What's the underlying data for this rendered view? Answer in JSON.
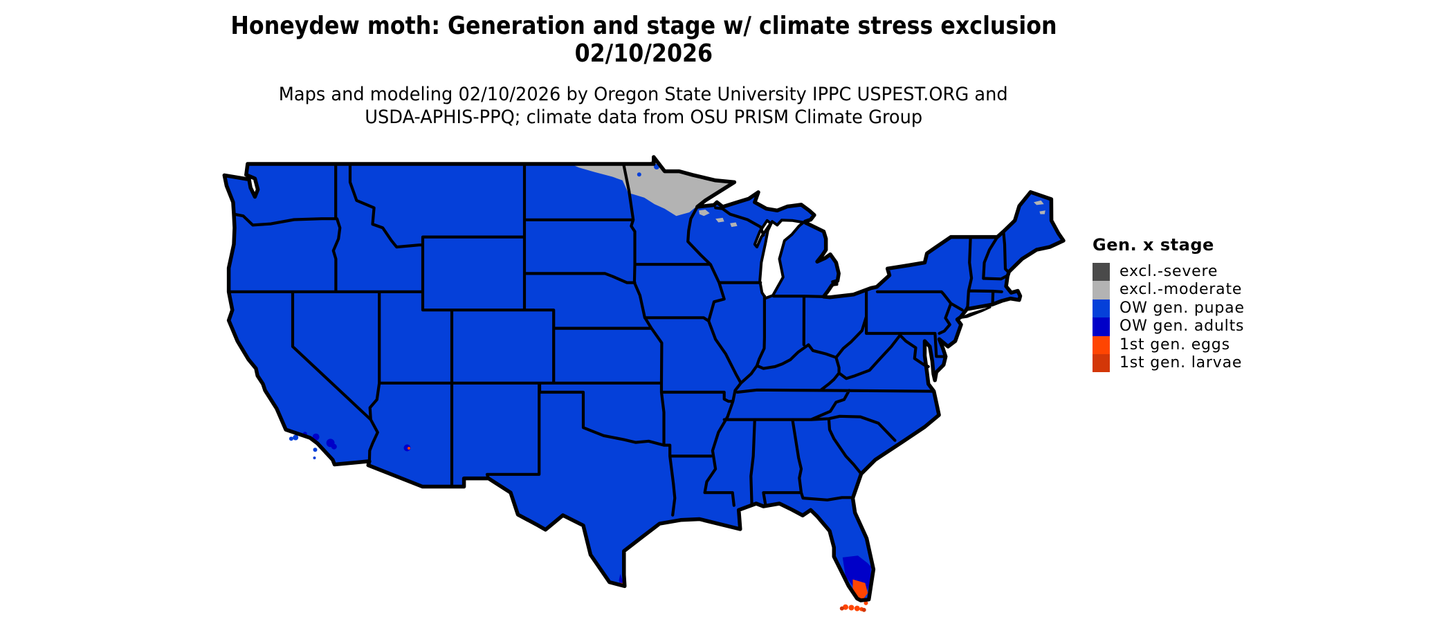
{
  "header": {
    "title_line1": "Honeydew moth: Generation and stage w/ climate stress exclusion",
    "title_line2": "02/10/2026",
    "subtitle_line1": "Maps and modeling 02/10/2026 by Oregon State University IPPC USPEST.ORG and",
    "subtitle_line2": "USDA-APHIS-PPQ; climate data from OSU PRISM Climate Group"
  },
  "legend": {
    "title": "Gen. x stage",
    "items": [
      {
        "key": "excl_severe",
        "label": "excl.-severe",
        "color": "#4a4a4a"
      },
      {
        "key": "excl_moderate",
        "label": "excl.-moderate",
        "color": "#b3b3b3"
      },
      {
        "key": "ow_pupae",
        "label": "OW gen. pupae",
        "color": "#0540d9"
      },
      {
        "key": "ow_adults",
        "label": "OW gen. adults",
        "color": "#0000c8"
      },
      {
        "key": "first_eggs",
        "label": "1st gen. eggs",
        "color": "#ff4501"
      },
      {
        "key": "first_larvae",
        "label": "1st gen. larvae",
        "color": "#d33708"
      }
    ]
  },
  "map": {
    "base_category": "ow_pupae",
    "outline_color": "#000000",
    "water_color": "#ffffff",
    "overlay_regions": [
      {
        "name": "nd-mn-canada-border-band",
        "category": "excl_moderate"
      },
      {
        "name": "northwest-wisconsin-patches",
        "category": "excl_moderate"
      },
      {
        "name": "northern-maine-patches",
        "category": "excl_moderate"
      },
      {
        "name": "south-florida-band",
        "category": "ow_adults"
      },
      {
        "name": "south-florida-tip",
        "category": "first_eggs"
      },
      {
        "name": "florida-keys",
        "category": "first_eggs"
      },
      {
        "name": "florida-keys-west",
        "category": "first_larvae"
      },
      {
        "name": "south-texas-tip",
        "category": "ow_adults"
      },
      {
        "name": "south-texas-points",
        "category": "first_eggs"
      },
      {
        "name": "socal-coastal-patches",
        "category": "ow_adults"
      },
      {
        "name": "phoenix-patch",
        "category": "ow_adults"
      },
      {
        "name": "phoenix-point",
        "category": "first_eggs"
      },
      {
        "name": "minnesota-border-lakes",
        "category": "ow_pupae"
      },
      {
        "name": "channel-islands",
        "category": "ow_pupae"
      }
    ]
  }
}
